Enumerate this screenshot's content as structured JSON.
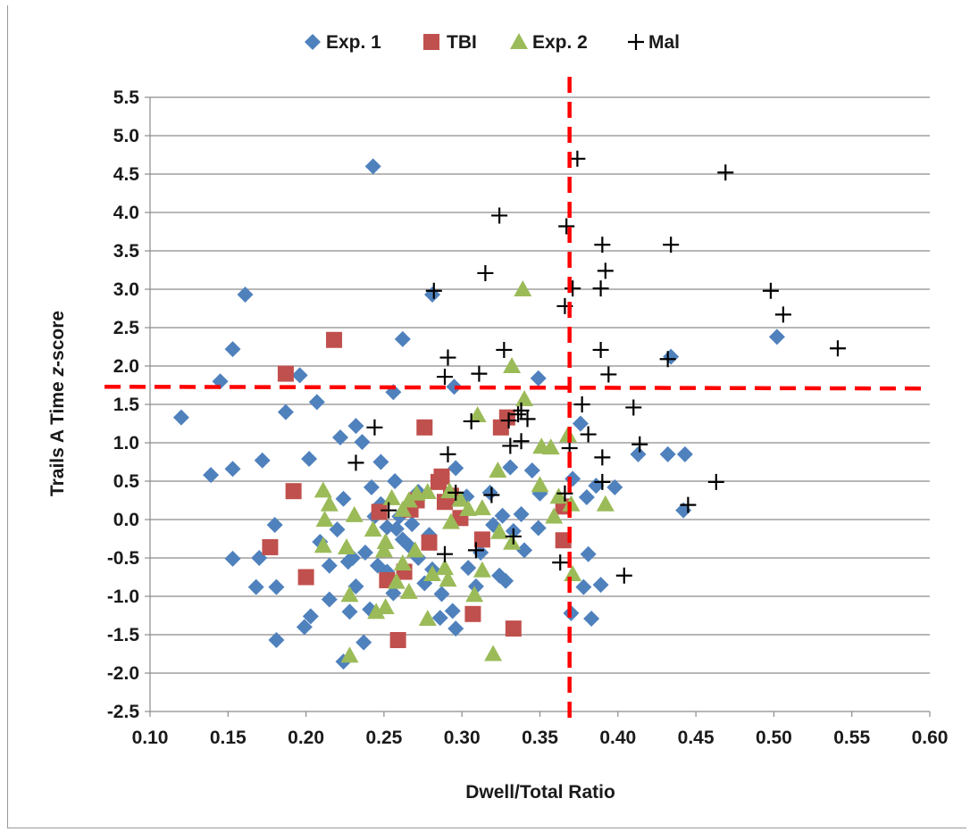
{
  "chart_data": {
    "type": "scatter",
    "xlabel": "Dwell/Total Ratio",
    "ylabel_parts": [
      "Trails A Time ",
      "z",
      "-score"
    ],
    "xlim": [
      0.1,
      0.6
    ],
    "ylim": [
      -2.5,
      5.5
    ],
    "xticks": [
      "0.10",
      "0.15",
      "0.20",
      "0.25",
      "0.30",
      "0.35",
      "0.40",
      "0.45",
      "0.50",
      "0.55",
      "0.60"
    ],
    "yticks": [
      "5.5",
      "5.0",
      "4.5",
      "4.0",
      "3.5",
      "3.0",
      "2.5",
      "2.0",
      "1.5",
      "1.0",
      "0.5",
      "0.0",
      "-0.5",
      "-1.0",
      "-1.5",
      "-2.0",
      "-2.5"
    ],
    "grid": "horizontal",
    "legend_position": "top",
    "cutoffs": {
      "x": 0.369,
      "y": 1.73,
      "color": "#ff0000"
    },
    "series": [
      {
        "name": "Exp. 1",
        "marker": "diamond",
        "color": "#4f81bd",
        "points": [
          [
            0.243,
            4.6
          ],
          [
            0.161,
            2.93
          ],
          [
            0.153,
            2.22
          ],
          [
            0.145,
            1.8
          ],
          [
            0.12,
            1.33
          ],
          [
            0.139,
            0.58
          ],
          [
            0.153,
            0.66
          ],
          [
            0.172,
            0.77
          ],
          [
            0.187,
            1.4
          ],
          [
            0.196,
            1.88
          ],
          [
            0.207,
            1.53
          ],
          [
            0.18,
            -0.07
          ],
          [
            0.17,
            -0.5
          ],
          [
            0.153,
            -0.51
          ],
          [
            0.168,
            -0.88
          ],
          [
            0.181,
            -0.88
          ],
          [
            0.181,
            -1.57
          ],
          [
            0.199,
            -1.4
          ],
          [
            0.203,
            -1.26
          ],
          [
            0.202,
            0.79
          ],
          [
            0.209,
            -0.29
          ],
          [
            0.215,
            -1.04
          ],
          [
            0.222,
            1.07
          ],
          [
            0.232,
            1.22
          ],
          [
            0.236,
            1.01
          ],
          [
            0.224,
            0.27
          ],
          [
            0.242,
            0.42
          ],
          [
            0.248,
            0.75
          ],
          [
            0.257,
            0.5
          ],
          [
            0.244,
            0.04
          ],
          [
            0.252,
            -0.1
          ],
          [
            0.238,
            -0.43
          ],
          [
            0.227,
            -0.55
          ],
          [
            0.232,
            -0.87
          ],
          [
            0.241,
            -1.17
          ],
          [
            0.228,
            -1.2
          ],
          [
            0.224,
            -1.85
          ],
          [
            0.237,
            -1.6
          ],
          [
            0.252,
            -0.68
          ],
          [
            0.262,
            -0.26
          ],
          [
            0.272,
            -0.5
          ],
          [
            0.256,
            -0.96
          ],
          [
            0.263,
            -0.68
          ],
          [
            0.281,
            -0.65
          ],
          [
            0.287,
            -0.97
          ],
          [
            0.294,
            -1.19
          ],
          [
            0.286,
            -1.28
          ],
          [
            0.296,
            -1.42
          ],
          [
            0.309,
            -0.87
          ],
          [
            0.312,
            -0.43
          ],
          [
            0.324,
            -0.73
          ],
          [
            0.328,
            -0.8
          ],
          [
            0.34,
            -0.4
          ],
          [
            0.349,
            -0.11
          ],
          [
            0.326,
            0.05
          ],
          [
            0.338,
            0.07
          ],
          [
            0.35,
            0.34
          ],
          [
            0.345,
            0.64
          ],
          [
            0.331,
            0.68
          ],
          [
            0.349,
            1.84
          ],
          [
            0.262,
            2.35
          ],
          [
            0.281,
            2.93
          ],
          [
            0.256,
            1.66
          ],
          [
            0.295,
            1.73
          ],
          [
            0.303,
            0.3
          ],
          [
            0.296,
            0.67
          ],
          [
            0.376,
            1.25
          ],
          [
            0.371,
            0.53
          ],
          [
            0.381,
            -0.45
          ],
          [
            0.378,
            -0.88
          ],
          [
            0.37,
            -1.22
          ],
          [
            0.383,
            -1.29
          ],
          [
            0.389,
            -0.85
          ],
          [
            0.38,
            0.29
          ],
          [
            0.386,
            0.44
          ],
          [
            0.398,
            0.42
          ],
          [
            0.413,
            0.85
          ],
          [
            0.432,
            0.85
          ],
          [
            0.443,
            0.85
          ],
          [
            0.442,
            0.12
          ],
          [
            0.434,
            2.12
          ],
          [
            0.502,
            2.38
          ],
          [
            0.22,
            -0.13
          ],
          [
            0.215,
            -0.6
          ],
          [
            0.23,
            -0.5
          ],
          [
            0.266,
            -0.34
          ],
          [
            0.276,
            -0.83
          ],
          [
            0.304,
            -0.63
          ],
          [
            0.258,
            -0.12
          ],
          [
            0.246,
            -0.6
          ],
          [
            0.279,
            -0.2
          ],
          [
            0.268,
            -0.06
          ],
          [
            0.272,
            0.36
          ],
          [
            0.26,
            0.04
          ],
          [
            0.248,
            0.2
          ],
          [
            0.32,
            -0.07
          ],
          [
            0.333,
            -0.15
          ],
          [
            0.318,
            0.35
          ]
        ]
      },
      {
        "name": "TBI",
        "marker": "square",
        "color": "#c0504d",
        "points": [
          [
            0.218,
            2.34
          ],
          [
            0.187,
            1.9
          ],
          [
            0.192,
            0.37
          ],
          [
            0.177,
            -0.36
          ],
          [
            0.2,
            -0.75
          ],
          [
            0.252,
            -0.79
          ],
          [
            0.259,
            -1.57
          ],
          [
            0.247,
            0.1
          ],
          [
            0.267,
            0.13
          ],
          [
            0.271,
            0.25
          ],
          [
            0.276,
            1.2
          ],
          [
            0.285,
            0.49
          ],
          [
            0.287,
            0.56
          ],
          [
            0.289,
            0.23
          ],
          [
            0.293,
            0.31
          ],
          [
            0.299,
            0.02
          ],
          [
            0.279,
            -0.3
          ],
          [
            0.307,
            -1.23
          ],
          [
            0.333,
            -1.42
          ],
          [
            0.325,
            1.2
          ],
          [
            0.329,
            1.33
          ],
          [
            0.365,
            0.17
          ],
          [
            0.365,
            -0.27
          ],
          [
            0.263,
            -0.68
          ],
          [
            0.313,
            -0.26
          ]
        ]
      },
      {
        "name": "Exp. 2",
        "marker": "triangle",
        "color": "#9bbb59",
        "points": [
          [
            0.339,
            3.0
          ],
          [
            0.332,
            2.0
          ],
          [
            0.34,
            1.57
          ],
          [
            0.31,
            1.36
          ],
          [
            0.351,
            0.95
          ],
          [
            0.357,
            0.94
          ],
          [
            0.323,
            0.64
          ],
          [
            0.35,
            0.45
          ],
          [
            0.37,
            0.2
          ],
          [
            0.392,
            0.2
          ],
          [
            0.359,
            0.04
          ],
          [
            0.368,
            1.1
          ],
          [
            0.362,
            0.3
          ],
          [
            0.211,
            0.38
          ],
          [
            0.215,
            0.2
          ],
          [
            0.212,
            0.0
          ],
          [
            0.211,
            -0.34
          ],
          [
            0.226,
            -0.36
          ],
          [
            0.231,
            0.06
          ],
          [
            0.243,
            -0.13
          ],
          [
            0.251,
            -0.29
          ],
          [
            0.255,
            0.28
          ],
          [
            0.262,
            0.13
          ],
          [
            0.266,
            0.25
          ],
          [
            0.271,
            0.34
          ],
          [
            0.278,
            0.36
          ],
          [
            0.292,
            0.37
          ],
          [
            0.299,
            0.26
          ],
          [
            0.293,
            -0.03
          ],
          [
            0.304,
            0.14
          ],
          [
            0.313,
            0.15
          ],
          [
            0.324,
            -0.16
          ],
          [
            0.332,
            -0.3
          ],
          [
            0.313,
            -0.66
          ],
          [
            0.308,
            -0.98
          ],
          [
            0.289,
            -0.63
          ],
          [
            0.281,
            -0.71
          ],
          [
            0.291,
            -0.78
          ],
          [
            0.278,
            -1.29
          ],
          [
            0.266,
            -0.94
          ],
          [
            0.258,
            -0.81
          ],
          [
            0.251,
            -1.14
          ],
          [
            0.245,
            -1.2
          ],
          [
            0.228,
            -0.98
          ],
          [
            0.228,
            -1.77
          ],
          [
            0.32,
            -1.75
          ],
          [
            0.371,
            -0.71
          ],
          [
            0.262,
            -0.57
          ],
          [
            0.27,
            -0.4
          ],
          [
            0.25,
            -0.4
          ]
        ]
      },
      {
        "name": "Mal",
        "marker": "plus",
        "color": "#000000",
        "points": [
          [
            0.374,
            4.7
          ],
          [
            0.469,
            4.52
          ],
          [
            0.324,
            3.96
          ],
          [
            0.367,
            3.82
          ],
          [
            0.39,
            3.58
          ],
          [
            0.434,
            3.58
          ],
          [
            0.392,
            3.24
          ],
          [
            0.315,
            3.21
          ],
          [
            0.282,
            2.98
          ],
          [
            0.389,
            3.01
          ],
          [
            0.498,
            2.98
          ],
          [
            0.506,
            2.67
          ],
          [
            0.371,
            3.01
          ],
          [
            0.366,
            2.78
          ],
          [
            0.541,
            2.23
          ],
          [
            0.327,
            2.21
          ],
          [
            0.389,
            2.21
          ],
          [
            0.432,
            2.09
          ],
          [
            0.291,
            2.11
          ],
          [
            0.289,
            1.86
          ],
          [
            0.311,
            1.9
          ],
          [
            0.394,
            1.89
          ],
          [
            0.377,
            1.5
          ],
          [
            0.41,
            1.46
          ],
          [
            0.244,
            1.2
          ],
          [
            0.306,
            1.28
          ],
          [
            0.33,
            1.29
          ],
          [
            0.336,
            1.37
          ],
          [
            0.338,
            1.42
          ],
          [
            0.342,
            1.31
          ],
          [
            0.381,
            1.11
          ],
          [
            0.338,
            1.02
          ],
          [
            0.331,
            0.96
          ],
          [
            0.369,
            0.93
          ],
          [
            0.414,
            0.98
          ],
          [
            0.39,
            0.81
          ],
          [
            0.232,
            0.74
          ],
          [
            0.291,
            0.85
          ],
          [
            0.39,
            0.49
          ],
          [
            0.463,
            0.49
          ],
          [
            0.296,
            0.35
          ],
          [
            0.319,
            0.32
          ],
          [
            0.366,
            0.34
          ],
          [
            0.445,
            0.19
          ],
          [
            0.253,
            0.12
          ],
          [
            0.333,
            -0.22
          ],
          [
            0.289,
            -0.45
          ],
          [
            0.309,
            -0.4
          ],
          [
            0.363,
            -0.56
          ],
          [
            0.404,
            -0.73
          ]
        ]
      }
    ]
  }
}
